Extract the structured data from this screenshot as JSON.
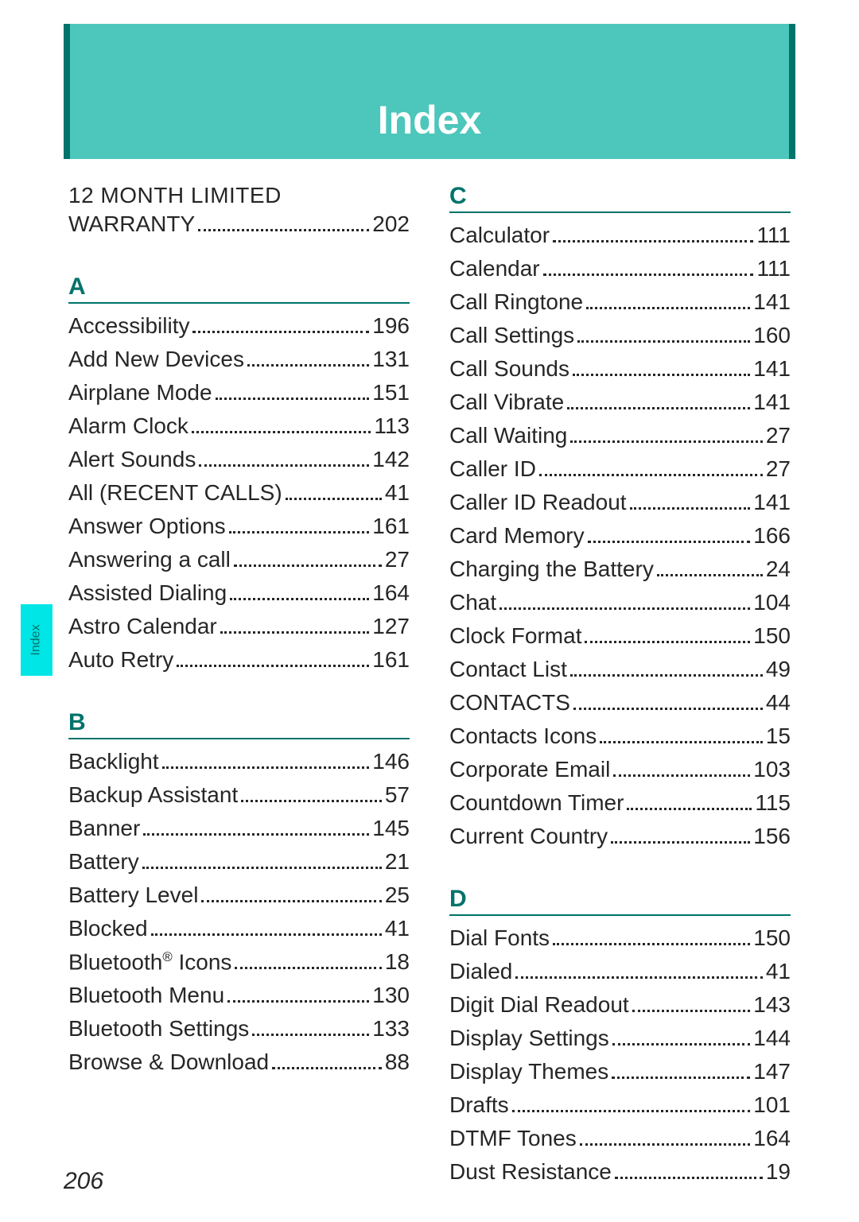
{
  "header": {
    "title": "Index"
  },
  "sideTab": {
    "label": "Index"
  },
  "pageNumber": "206",
  "preEntries": [
    {
      "line1": "12 MONTH LIMITED",
      "line2": "WARRANTY",
      "page": "202"
    }
  ],
  "left": [
    {
      "letter": "A",
      "entries": [
        {
          "label": "Accessibility",
          "page": "196"
        },
        {
          "label": "Add New Devices",
          "page": "131"
        },
        {
          "label": "Airplane Mode",
          "page": "151"
        },
        {
          "label": "Alarm Clock",
          "page": "113"
        },
        {
          "label": "Alert Sounds",
          "page": "142"
        },
        {
          "label": "All (RECENT CALLS)",
          "page": "41"
        },
        {
          "label": "Answer Options",
          "page": "161"
        },
        {
          "label": "Answering a call",
          "page": "27"
        },
        {
          "label": "Assisted Dialing",
          "page": "164"
        },
        {
          "label": "Astro Calendar",
          "page": "127"
        },
        {
          "label": "Auto Retry",
          "page": "161"
        }
      ]
    },
    {
      "letter": "B",
      "entries": [
        {
          "label": "Backlight",
          "page": "146"
        },
        {
          "label": "Backup Assistant",
          "page": "57"
        },
        {
          "label": "Banner",
          "page": "145"
        },
        {
          "label": "Battery",
          "page": "21"
        },
        {
          "label": "Battery Level",
          "page": "25"
        },
        {
          "label": "Blocked",
          "page": "41"
        },
        {
          "label": "Bluetooth® Icons",
          "page": "18",
          "hasReg": true
        },
        {
          "label": "Bluetooth Menu",
          "page": "130"
        },
        {
          "label": "Bluetooth Settings",
          "page": "133"
        },
        {
          "label": "Browse & Download",
          "page": "88"
        }
      ]
    }
  ],
  "right": [
    {
      "letter": "C",
      "entries": [
        {
          "label": "Calculator",
          "page": "111"
        },
        {
          "label": "Calendar",
          "page": "111"
        },
        {
          "label": "Call Ringtone",
          "page": "141"
        },
        {
          "label": "Call Settings",
          "page": "160"
        },
        {
          "label": "Call Sounds",
          "page": "141"
        },
        {
          "label": "Call Vibrate",
          "page": "141"
        },
        {
          "label": "Call Waiting",
          "page": "27"
        },
        {
          "label": "Caller ID",
          "page": "27"
        },
        {
          "label": "Caller ID Readout",
          "page": "141"
        },
        {
          "label": "Card Memory",
          "page": "166"
        },
        {
          "label": "Charging the Battery",
          "page": "24"
        },
        {
          "label": "Chat",
          "page": "104"
        },
        {
          "label": "Clock Format",
          "page": "150"
        },
        {
          "label": "Contact List",
          "page": "49"
        },
        {
          "label": "CONTACTS",
          "page": "44"
        },
        {
          "label": "Contacts Icons",
          "page": "15"
        },
        {
          "label": "Corporate Email",
          "page": "103"
        },
        {
          "label": "Countdown Timer",
          "page": "115"
        },
        {
          "label": "Current Country",
          "page": "156"
        }
      ]
    },
    {
      "letter": "D",
      "entries": [
        {
          "label": "Dial Fonts",
          "page": "150"
        },
        {
          "label": "Dialed",
          "page": "41"
        },
        {
          "label": "Digit Dial Readout",
          "page": "143"
        },
        {
          "label": "Display Settings",
          "page": "144"
        },
        {
          "label": "Display Themes",
          "page": "147"
        },
        {
          "label": "Drafts",
          "page": "101"
        },
        {
          "label": "DTMF Tones",
          "page": "164"
        },
        {
          "label": "Dust Resistance",
          "page": "19"
        }
      ]
    }
  ]
}
